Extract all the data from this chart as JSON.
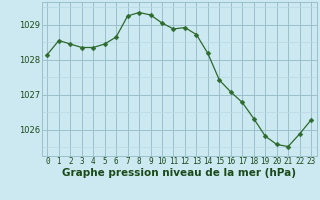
{
  "x": [
    0,
    1,
    2,
    3,
    4,
    5,
    6,
    7,
    8,
    9,
    10,
    11,
    12,
    13,
    14,
    15,
    16,
    17,
    18,
    19,
    20,
    21,
    22,
    23
  ],
  "y": [
    1028.15,
    1028.55,
    1028.45,
    1028.35,
    1028.35,
    1028.45,
    1028.65,
    1029.25,
    1029.35,
    1029.28,
    1029.05,
    1028.88,
    1028.92,
    1028.72,
    1028.18,
    1027.42,
    1027.08,
    1026.78,
    1026.32,
    1025.82,
    1025.58,
    1025.52,
    1025.88,
    1026.28
  ],
  "line_color": "#2d6a2d",
  "marker": "D",
  "marker_size": 2.5,
  "bg_color": "#cce8f0",
  "grid_minor_color": "#b8d8e2",
  "grid_major_color": "#9ac0cc",
  "xlabel": "Graphe pression niveau de la mer (hPa)",
  "xlabel_fontsize": 7.5,
  "xlabel_color": "#1a4a1a",
  "tick_color": "#1a4a1a",
  "tick_fontsize": 5.5,
  "ylim": [
    1025.25,
    1029.65
  ],
  "yticks": [
    1026,
    1027,
    1028,
    1029
  ],
  "xticks": [
    0,
    1,
    2,
    3,
    4,
    5,
    6,
    7,
    8,
    9,
    10,
    11,
    12,
    13,
    14,
    15,
    16,
    17,
    18,
    19,
    20,
    21,
    22,
    23
  ]
}
